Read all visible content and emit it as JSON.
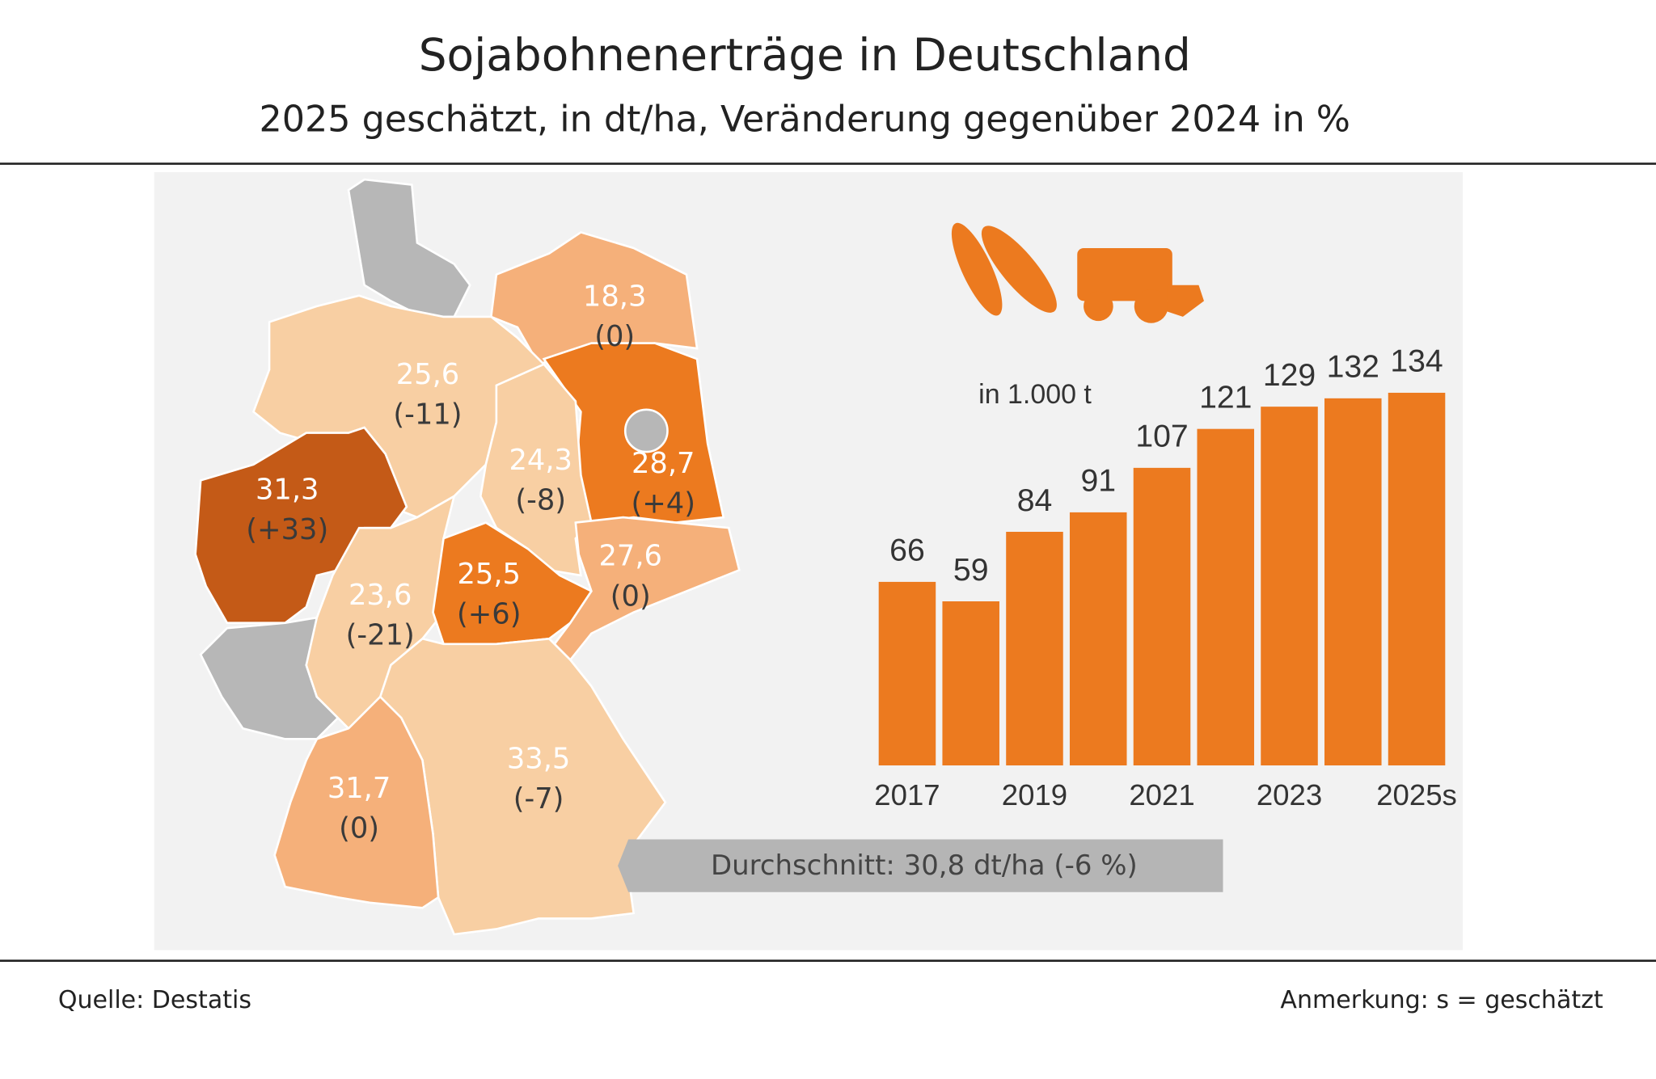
{
  "title": "Sojabohnenerträge in Deutschland",
  "subtitle": "2025 geschätzt, in dt/ha, Veränderung gegenüber 2024 in %",
  "chart_data": [
    {
      "type": "choropleth",
      "values": [
        18.3,
        28.7,
        25.6,
        31.3,
        24.3,
        23.6,
        25.5,
        27.6,
        33.5,
        31.7
      ],
      "value_labels": [
        "18,3",
        "28,7",
        "25,6",
        "31,3",
        "24,3",
        "23,6",
        "25,5",
        "27,6",
        "33,5",
        "31,7"
      ],
      "changes": [
        0,
        4,
        -11,
        33,
        -8,
        -21,
        6,
        0,
        -7,
        0
      ],
      "change_labels": [
        "(0)",
        "(+4)",
        "(-11)",
        "(+33)",
        "(-8)",
        "(-21)",
        "(+6)",
        "(0)",
        "(-7)",
        "(0)"
      ],
      "colors": [
        "#f5b07a",
        "#ec7a1f",
        "#f8cfa3",
        "#c45a17",
        "#f8cfa3",
        "#f8cfa3",
        "#ec7a1f",
        "#f5b07a",
        "#f8cfa3",
        "#f5b07a"
      ],
      "annotation": "Durchschnitt: 30,8 dt/ha (-6 %)"
    },
    {
      "type": "bar",
      "unit_label": "in 1.000 t",
      "categories": [
        "2017",
        null,
        "2019",
        null,
        "2021",
        null,
        "2023",
        null,
        "2025s"
      ],
      "values": [
        66,
        59,
        84,
        91,
        107,
        121,
        129,
        132,
        134
      ],
      "color": "#ec7a1f"
    }
  ],
  "footer": {
    "source": "Quelle: Destatis",
    "note": "Anmerkung:  s = geschätzt"
  }
}
